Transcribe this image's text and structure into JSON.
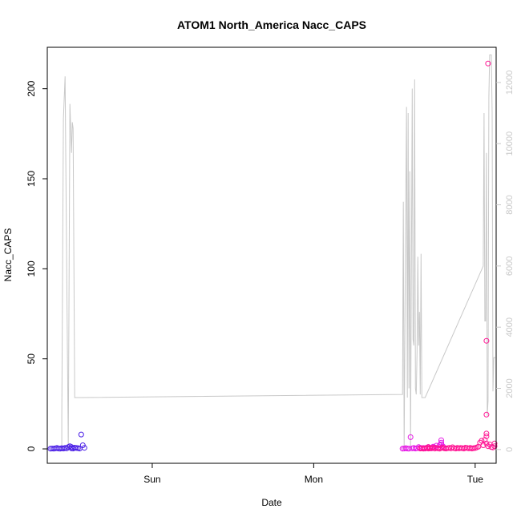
{
  "chart_data": {
    "type": "scatter",
    "title": "ATOM1 North_America Nacc_CAPS",
    "xlabel": "Date",
    "ylabel": "Nacc_CAPS",
    "x_unit": "days since Saturday 00:00",
    "xlim": [
      0.35,
      3.13
    ],
    "ylim": [
      -8,
      223
    ],
    "x_ticks": [
      {
        "value": 1,
        "label": "Sun"
      },
      {
        "value": 2,
        "label": "Mon"
      },
      {
        "value": 3,
        "label": "Tue"
      }
    ],
    "y_ticks": [
      0,
      50,
      100,
      150,
      200
    ],
    "y2_ticks": [
      0,
      2000,
      4000,
      6000,
      8000,
      10000,
      12000
    ],
    "y2_ylim": [
      -450,
      13150
    ],
    "grid": false,
    "colors": {
      "line": "#c8c8c8",
      "axis": "#000000",
      "axis_right": "#c8c8c8",
      "series_blue": "#4a1ee6",
      "series_magenta": "#e619e6",
      "series_pink": "#ff1493"
    },
    "line_series": {
      "name": "secondary (right axis)",
      "x": [
        0.44,
        0.44,
        0.45,
        0.46,
        0.47,
        0.48,
        0.49,
        0.5,
        0.505,
        0.51,
        0.52,
        0.525,
        0.53,
        0.54,
        0.545,
        0.55,
        0.555,
        2.55,
        2.555,
        2.56,
        2.57,
        2.575,
        2.58,
        2.585,
        2.59,
        2.595,
        2.6,
        2.61,
        2.615,
        2.62,
        2.625,
        2.63,
        2.635,
        2.64,
        2.645,
        2.65,
        2.655,
        2.66,
        2.665,
        2.67,
        2.675,
        2.68,
        2.685,
        2.69,
        3.05,
        3.055,
        3.06,
        3.065,
        3.07,
        3.075,
        3.08,
        3.085,
        3.09,
        3.095,
        3.1,
        3.105,
        3.11,
        3.115,
        3.12,
        3.125
      ],
      "y": [
        0,
        1100,
        10800,
        12200,
        6000,
        0,
        11300,
        9700,
        10700,
        10500,
        1700,
        1700,
        1700,
        1700,
        1700,
        1700,
        1700,
        1800,
        8100,
        0,
        8100,
        11200,
        1700,
        11000,
        2000,
        9100,
        0,
        11800,
        3600,
        3400,
        12100,
        2000,
        1800,
        3200,
        6300,
        3400,
        4500,
        1800,
        6400,
        1700,
        1700,
        1700,
        1700,
        1700,
        6000,
        11000,
        4200,
        4200,
        9700,
        1100,
        1600,
        11500,
        12900,
        12900,
        12900,
        11000,
        1900,
        3000,
        3000,
        3000
      ]
    },
    "series": [
      {
        "name": "blue",
        "x": [
          0.37,
          0.38,
          0.39,
          0.4,
          0.41,
          0.42,
          0.43,
          0.44,
          0.45,
          0.46,
          0.47,
          0.48,
          0.49,
          0.5,
          0.5,
          0.51,
          0.52,
          0.53,
          0.54,
          0.55,
          0.56,
          0.57,
          0.58
        ],
        "y": [
          0.1,
          0.2,
          0.1,
          0.3,
          0.5,
          0.2,
          0.1,
          0.4,
          0.2,
          0.6,
          0.3,
          1.0,
          1.5,
          1.0,
          0.3,
          0.2,
          0.7,
          0.5,
          0.4,
          0.2,
          8.0,
          2.0,
          0.6
        ]
      },
      {
        "name": "magenta",
        "x": [
          2.55,
          2.56,
          2.57,
          2.58,
          2.59,
          2.6,
          2.61,
          2.62,
          2.63,
          2.64,
          2.65,
          2.66,
          2.67,
          2.68,
          2.69,
          2.7,
          2.71,
          2.72,
          2.73,
          2.74,
          2.75,
          2.76,
          2.77,
          2.78,
          2.79,
          2.79,
          2.79,
          2.8,
          2.81
        ],
        "y": [
          0.1,
          0.2,
          0.4,
          0.2,
          0.1,
          6.5,
          0.3,
          0.5,
          0.2,
          0.4,
          1.0,
          0.6,
          0.3,
          0.5,
          0.2,
          0.7,
          1.1,
          0.6,
          0.3,
          1.2,
          0.8,
          1.8,
          0.4,
          2.0,
          3.5,
          2.5,
          4.8,
          1.5,
          0.6
        ]
      },
      {
        "name": "pink",
        "x": [
          2.66,
          2.67,
          2.68,
          2.69,
          2.7,
          2.71,
          2.71,
          2.72,
          2.72,
          2.73,
          2.74,
          2.75,
          2.76,
          2.77,
          2.78,
          2.79,
          2.8,
          2.81,
          2.82,
          2.83,
          2.84,
          2.85,
          2.86,
          2.87,
          2.88,
          2.89,
          2.9,
          2.91,
          2.92,
          2.93,
          2.94,
          2.95,
          2.96,
          2.97,
          2.98,
          2.99,
          3.0,
          3.01,
          3.02,
          3.03,
          3.04,
          3.05,
          3.06,
          3.07,
          3.07,
          3.07,
          3.07,
          3.07,
          3.08,
          3.08,
          3.09,
          3.1,
          3.11,
          3.12,
          3.12
        ],
        "y": [
          0.2,
          0.4,
          0.1,
          0.3,
          0.6,
          0.2,
          1.0,
          0.3,
          0.5,
          0.4,
          0.8,
          0.2,
          0.6,
          0.3,
          0.1,
          0.5,
          0.7,
          0.3,
          0.2,
          0.4,
          0.6,
          0.3,
          0.9,
          0.4,
          0.2,
          0.6,
          0.3,
          0.5,
          0.4,
          0.2,
          0.7,
          0.5,
          0.3,
          0.6,
          0.2,
          0.4,
          0.5,
          0.8,
          1.2,
          3.5,
          4.5,
          2.0,
          5.0,
          19.0,
          60.0,
          7.0,
          8.5,
          3.0,
          214.0,
          1.5,
          2.5,
          1.0,
          0.8,
          3.0,
          1.5
        ]
      }
    ]
  }
}
